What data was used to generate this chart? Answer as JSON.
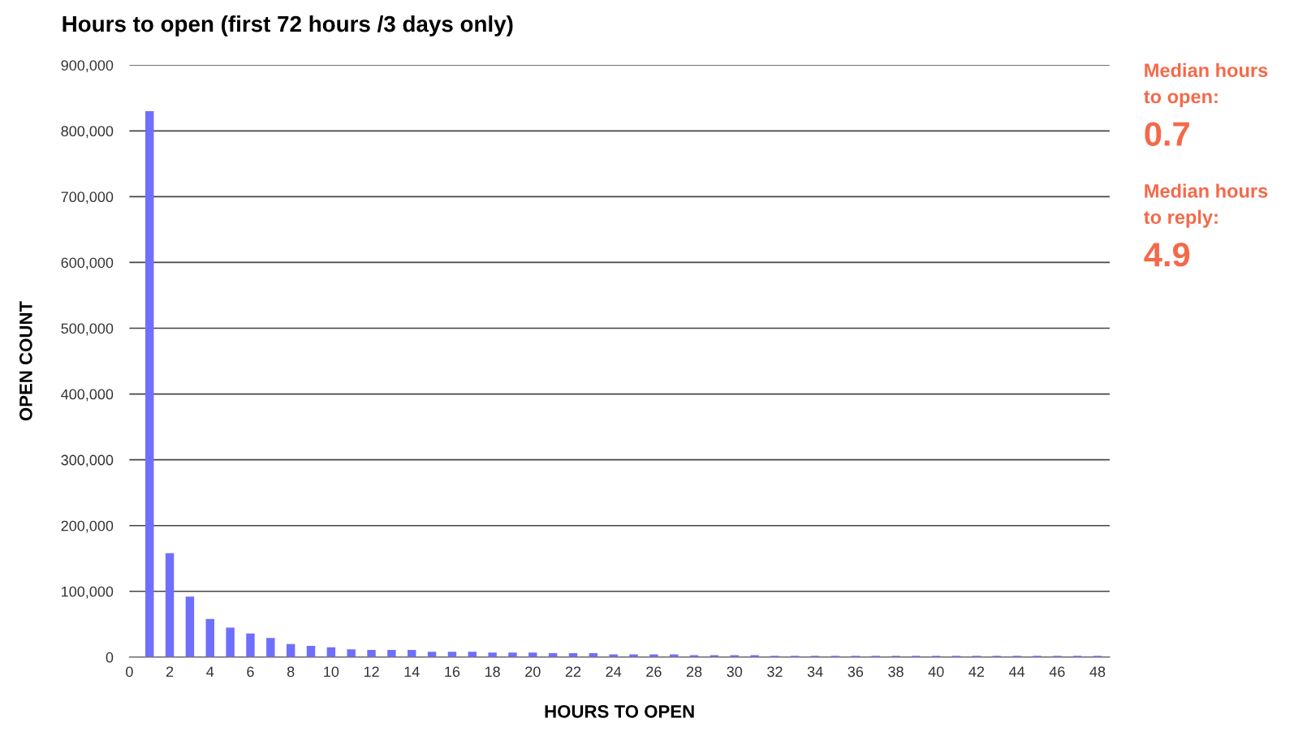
{
  "chart_data": {
    "type": "bar",
    "title": "Hours to open (first 72 hours /3 days only)",
    "xlabel": "HOURS TO OPEN",
    "ylabel": "OPEN COUNT",
    "x": [
      1,
      2,
      3,
      4,
      5,
      6,
      7,
      8,
      9,
      10,
      11,
      12,
      13,
      14,
      15,
      16,
      17,
      18,
      19,
      20,
      21,
      22,
      23,
      24,
      25,
      26,
      27,
      28,
      29,
      30,
      31,
      32,
      33,
      34,
      35,
      36,
      37,
      38,
      39,
      40,
      41,
      42,
      43,
      44,
      45,
      46,
      47,
      48
    ],
    "values": [
      830000,
      158000,
      92000,
      58000,
      45000,
      36000,
      29000,
      20000,
      17000,
      15000,
      12000,
      11000,
      11000,
      11000,
      8000,
      8000,
      8000,
      7000,
      7000,
      7000,
      6000,
      6000,
      6000,
      4000,
      4000,
      4000,
      4000,
      3000,
      3000,
      3000,
      3000,
      2000,
      2000,
      2000,
      2000,
      2000,
      2000,
      2000,
      2000,
      2000,
      2000,
      2000,
      2000,
      2000,
      2000,
      2000,
      2000,
      2000
    ],
    "color": "#6f6ffd",
    "xlim": [
      0,
      48.6
    ],
    "xticks": [
      0,
      2,
      4,
      6,
      8,
      10,
      12,
      14,
      16,
      18,
      20,
      22,
      24,
      26,
      28,
      30,
      32,
      34,
      36,
      38,
      40,
      42,
      44,
      46,
      48
    ],
    "ylim": [
      0,
      900000
    ],
    "yticks": [
      {
        "value": 0,
        "label": "0"
      },
      {
        "value": 100000,
        "label": "100,000"
      },
      {
        "value": 200000,
        "label": "200,000"
      },
      {
        "value": 300000,
        "label": "300,000"
      },
      {
        "value": 400000,
        "label": "400,000"
      },
      {
        "value": 500000,
        "label": "500,000"
      },
      {
        "value": 600000,
        "label": "600,000"
      },
      {
        "value": 700000,
        "label": "700,000"
      },
      {
        "value": 800000,
        "label": "800,000"
      },
      {
        "value": 900000,
        "label": "900,000"
      }
    ],
    "grid": "y",
    "annotations": [
      "Median hours\nto open:",
      "0.7",
      "Median hours\nto reply:",
      "4.9"
    ]
  }
}
